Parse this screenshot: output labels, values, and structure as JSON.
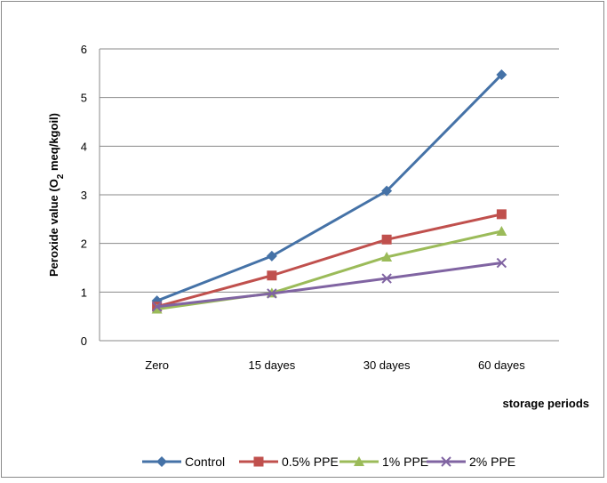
{
  "chart_data": {
    "type": "line",
    "categories": [
      "Zero",
      "15 dayes",
      "30 dayes",
      "60 dayes"
    ],
    "series": [
      {
        "name": "Control",
        "values": [
          0.82,
          1.74,
          3.08,
          5.47
        ],
        "color": "#4572a7",
        "marker": "diamond"
      },
      {
        "name": "0.5% PPE",
        "values": [
          0.7,
          1.34,
          2.08,
          2.6
        ],
        "color": "#c0504d",
        "marker": "square"
      },
      {
        "name": "1% PPE",
        "values": [
          0.65,
          0.98,
          1.72,
          2.25
        ],
        "color": "#9bbb59",
        "marker": "triangle"
      },
      {
        "name": "2% PPE",
        "values": [
          0.7,
          0.97,
          1.28,
          1.6
        ],
        "color": "#8064a2",
        "marker": "x"
      }
    ],
    "ylabel": "Peroxide value (O2 meq/kgoil)",
    "xlabel": "storage periods",
    "ylim": [
      0,
      6
    ],
    "yticks": [
      "0",
      "1",
      "2",
      "3",
      "4",
      "5",
      "6"
    ],
    "grid": "horizontal",
    "legend": "bottom"
  }
}
